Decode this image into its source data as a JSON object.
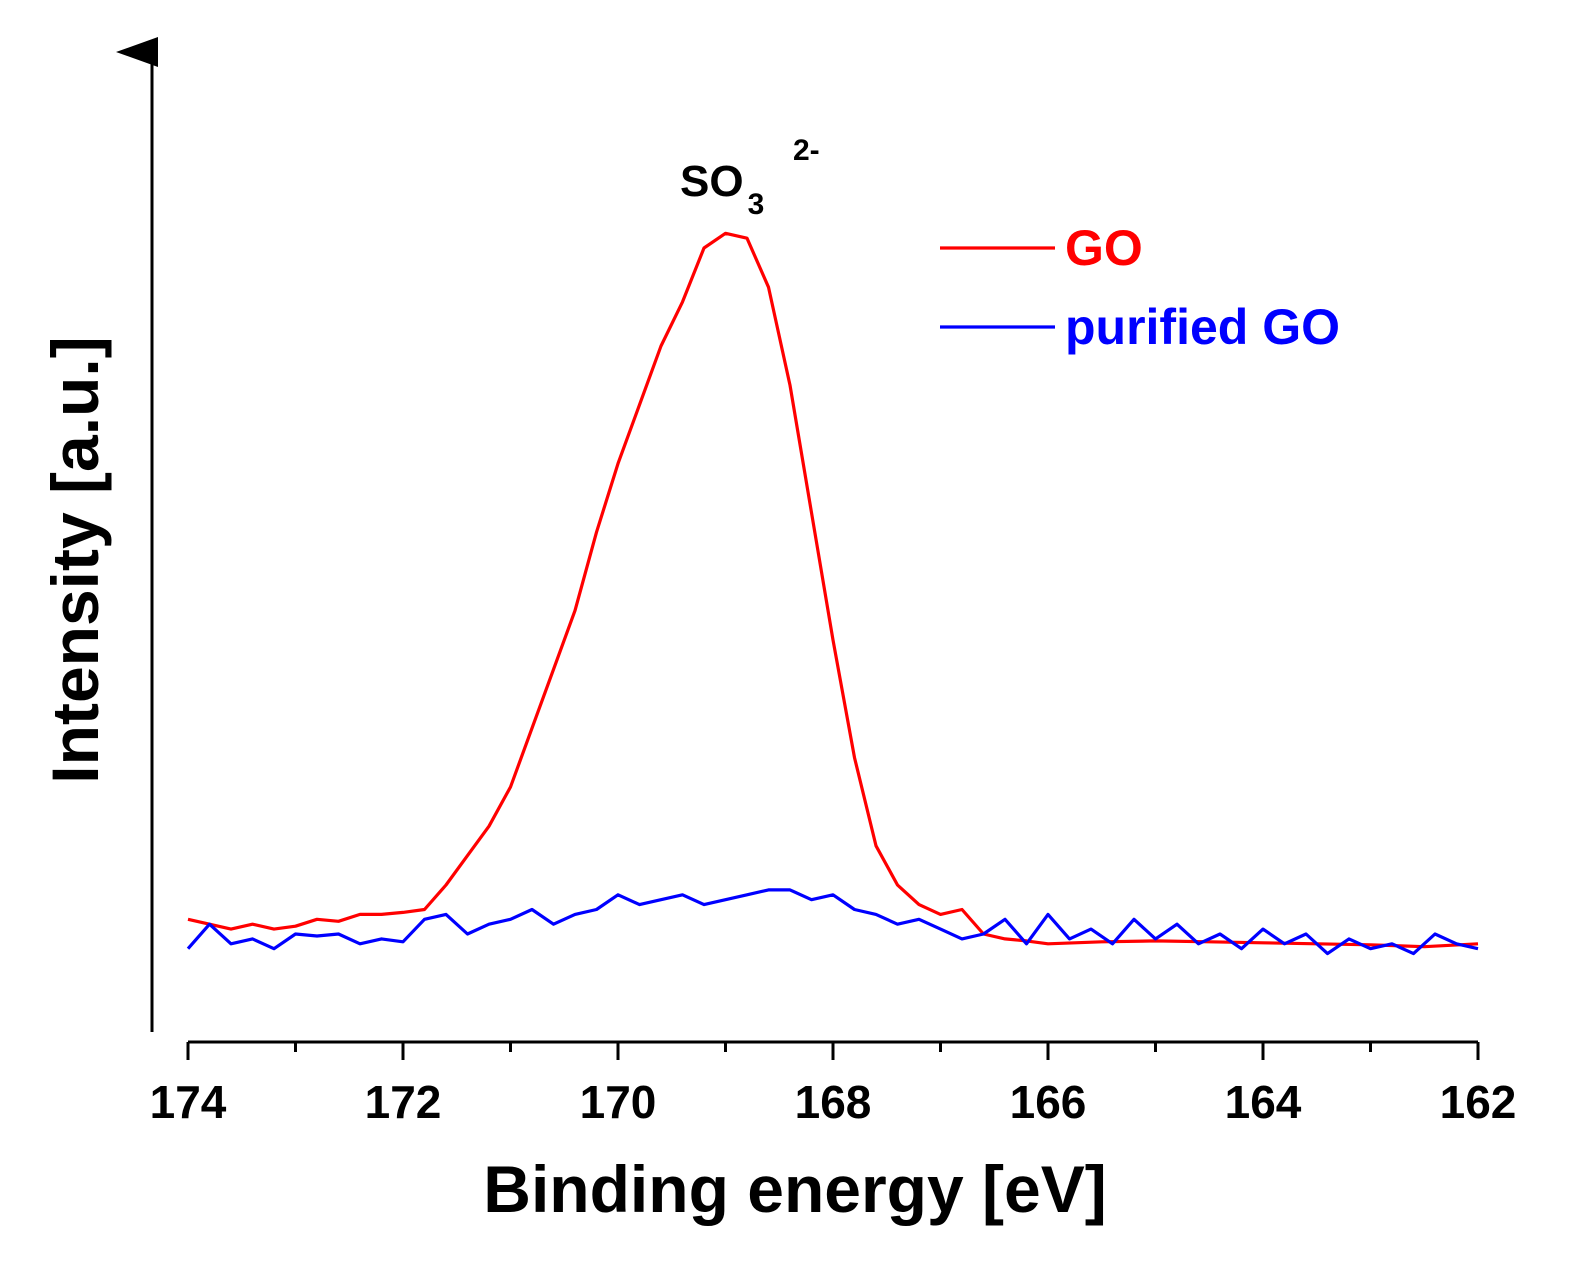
{
  "chart_data": {
    "type": "line",
    "title": "",
    "xlabel": "Binding energy [eV]",
    "ylabel": "Intensity [a.u.]",
    "xlim": [
      174,
      162
    ],
    "ylim": [
      0,
      1
    ],
    "x_reversed": true,
    "xticks": [
      174,
      172,
      170,
      168,
      166,
      164,
      162
    ],
    "xtick_labels": [
      "174",
      "172",
      "170",
      "168",
      "166",
      "164",
      "162"
    ],
    "grid": false,
    "legend_position": "top-right",
    "annotation": {
      "base": "SO",
      "subscript": "3",
      "superscript": "2-",
      "x": 169.0,
      "y": 0.88
    },
    "series": [
      {
        "name": "GO",
        "color": "#ff0000",
        "x": [
          174.0,
          173.8,
          173.6,
          173.4,
          173.2,
          173.0,
          172.8,
          172.6,
          172.4,
          172.2,
          172.0,
          171.8,
          171.6,
          171.4,
          171.2,
          171.0,
          170.8,
          170.6,
          170.4,
          170.2,
          170.0,
          169.8,
          169.6,
          169.4,
          169.2,
          169.0,
          168.8,
          168.6,
          168.4,
          168.2,
          168.0,
          167.8,
          167.6,
          167.4,
          167.2,
          167.0,
          166.8,
          166.6,
          166.4,
          166.2,
          166.0,
          165.5,
          165.0,
          164.5,
          164.0,
          163.5,
          163.0,
          162.5,
          162.0
        ],
        "values": [
          0.115,
          0.11,
          0.105,
          0.11,
          0.105,
          0.108,
          0.115,
          0.113,
          0.12,
          0.12,
          0.122,
          0.125,
          0.15,
          0.18,
          0.21,
          0.25,
          0.31,
          0.37,
          0.43,
          0.51,
          0.58,
          0.64,
          0.7,
          0.745,
          0.8,
          0.815,
          0.81,
          0.76,
          0.66,
          0.53,
          0.4,
          0.28,
          0.19,
          0.15,
          0.13,
          0.12,
          0.125,
          0.1,
          0.095,
          0.093,
          0.09,
          0.092,
          0.093,
          0.092,
          0.091,
          0.09,
          0.089,
          0.087,
          0.09
        ]
      },
      {
        "name": "purified GO",
        "color": "#0000ff",
        "x": [
          174.0,
          173.8,
          173.6,
          173.4,
          173.2,
          173.0,
          172.8,
          172.6,
          172.4,
          172.2,
          172.0,
          171.8,
          171.6,
          171.4,
          171.2,
          171.0,
          170.8,
          170.6,
          170.4,
          170.2,
          170.0,
          169.8,
          169.6,
          169.4,
          169.2,
          169.0,
          168.8,
          168.6,
          168.4,
          168.2,
          168.0,
          167.8,
          167.6,
          167.4,
          167.2,
          167.0,
          166.8,
          166.6,
          166.4,
          166.2,
          166.0,
          165.8,
          165.6,
          165.4,
          165.2,
          165.0,
          164.8,
          164.6,
          164.4,
          164.2,
          164.0,
          163.8,
          163.6,
          163.4,
          163.2,
          163.0,
          162.8,
          162.6,
          162.4,
          162.2,
          162.0
        ],
        "values": [
          0.085,
          0.11,
          0.09,
          0.095,
          0.085,
          0.1,
          0.098,
          0.1,
          0.09,
          0.095,
          0.092,
          0.115,
          0.12,
          0.1,
          0.11,
          0.115,
          0.125,
          0.11,
          0.12,
          0.125,
          0.14,
          0.13,
          0.135,
          0.14,
          0.13,
          0.135,
          0.14,
          0.145,
          0.145,
          0.135,
          0.14,
          0.125,
          0.12,
          0.11,
          0.115,
          0.105,
          0.095,
          0.1,
          0.115,
          0.09,
          0.12,
          0.095,
          0.105,
          0.09,
          0.115,
          0.095,
          0.11,
          0.09,
          0.1,
          0.085,
          0.105,
          0.09,
          0.1,
          0.08,
          0.095,
          0.085,
          0.09,
          0.08,
          0.1,
          0.09,
          0.085
        ]
      }
    ]
  }
}
